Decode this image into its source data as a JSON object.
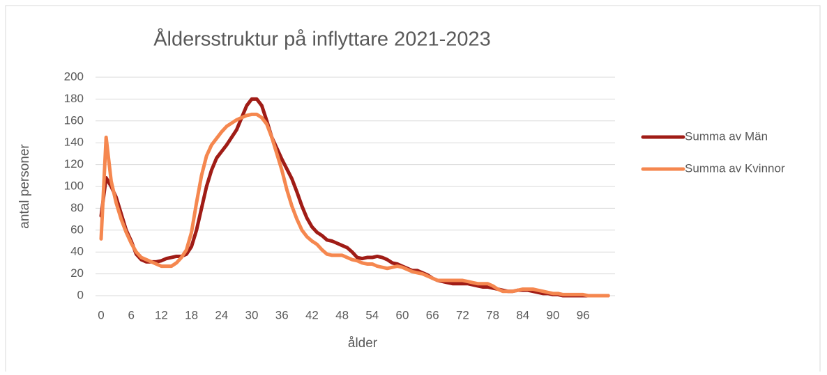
{
  "chart_data": {
    "type": "line",
    "title": "Åldersstruktur på inflyttare  2021-2023",
    "x_label": "ålder",
    "y_label": "antal personer",
    "categories": [
      "0",
      null,
      null,
      null,
      null,
      null,
      "6",
      null,
      null,
      null,
      null,
      null,
      "12",
      null,
      null,
      null,
      null,
      null,
      "18",
      null,
      null,
      null,
      null,
      null,
      "24",
      null,
      null,
      null,
      null,
      null,
      "30",
      null,
      null,
      null,
      null,
      null,
      "36",
      null,
      null,
      null,
      null,
      null,
      "42",
      null,
      null,
      null,
      null,
      null,
      "48",
      null,
      null,
      null,
      null,
      null,
      "54",
      null,
      null,
      null,
      null,
      null,
      "60",
      null,
      null,
      null,
      null,
      null,
      "66",
      null,
      null,
      null,
      null,
      null,
      "72",
      null,
      null,
      null,
      null,
      null,
      "78",
      null,
      null,
      null,
      null,
      null,
      "84",
      null,
      null,
      null,
      null,
      null,
      "90",
      null,
      null,
      null,
      null,
      null,
      "96",
      null,
      null,
      null,
      null,
      null
    ],
    "series": [
      {
        "name": "Summa av Män",
        "color": "#a01c16",
        "values": [
          73,
          108,
          100,
          90,
          75,
          60,
          50,
          38,
          33,
          31,
          31,
          31,
          32,
          34,
          35,
          36,
          36,
          38,
          45,
          60,
          80,
          100,
          115,
          126,
          132,
          138,
          145,
          152,
          163,
          174,
          180,
          180,
          174,
          160,
          145,
          135,
          125,
          116,
          107,
          95,
          82,
          71,
          63,
          58,
          55,
          51,
          50,
          48,
          46,
          44,
          40,
          35,
          34,
          35,
          35,
          36,
          35,
          33,
          30,
          29,
          27,
          25,
          23,
          23,
          21,
          19,
          16,
          14,
          13,
          12,
          11,
          11,
          11,
          11,
          10,
          9,
          8,
          8,
          7,
          6,
          5,
          4,
          4,
          5,
          5,
          5,
          4,
          3,
          2,
          2,
          1,
          1,
          0,
          0,
          0,
          0,
          0,
          0,
          0,
          0,
          0,
          0
        ]
      },
      {
        "name": "Summa av Kvinnor",
        "color": "#f5874f",
        "values": [
          52,
          145,
          105,
          85,
          70,
          58,
          48,
          40,
          35,
          33,
          31,
          29,
          27,
          27,
          27,
          30,
          35,
          42,
          58,
          85,
          110,
          128,
          138,
          144,
          150,
          155,
          158,
          161,
          163,
          165,
          166,
          166,
          163,
          157,
          145,
          130,
          115,
          97,
          82,
          70,
          60,
          54,
          50,
          47,
          42,
          38,
          37,
          37,
          37,
          35,
          33,
          32,
          30,
          29,
          29,
          27,
          26,
          25,
          26,
          27,
          26,
          24,
          22,
          21,
          20,
          18,
          16,
          14,
          14,
          14,
          14,
          14,
          14,
          13,
          12,
          11,
          11,
          11,
          9,
          6,
          4,
          4,
          4,
          5,
          6,
          6,
          6,
          5,
          4,
          3,
          2,
          2,
          1,
          1,
          1,
          1,
          1,
          0,
          0,
          0,
          0,
          0
        ]
      }
    ],
    "ylim": [
      0,
      200
    ],
    "yticks": [
      0,
      20,
      40,
      60,
      80,
      100,
      120,
      140,
      160,
      180,
      200
    ],
    "grid": true,
    "legend": "right"
  }
}
